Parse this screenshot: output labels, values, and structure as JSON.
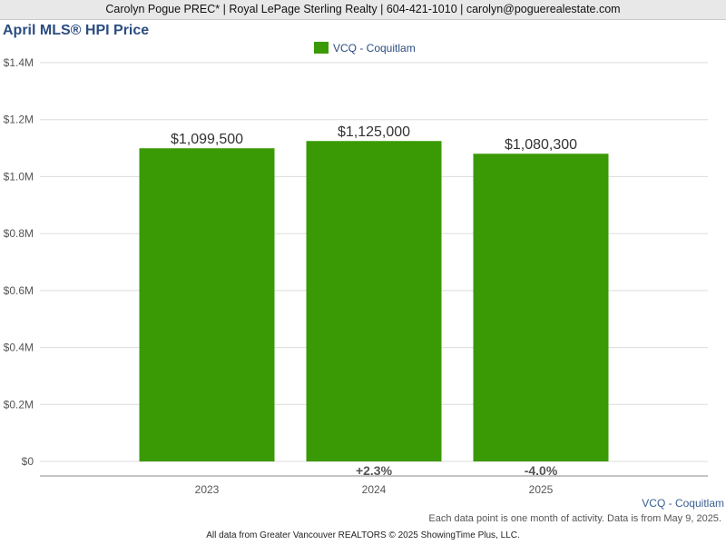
{
  "header": {
    "contact": "Carolyn Pogue PREC* | Royal LePage Sterling Realty | 604-421-1010 | carolyn@poguerealestate.com"
  },
  "chart_data": {
    "type": "bar",
    "title": "April MLS® HPI Price",
    "categories": [
      "2023",
      "2024",
      "2025"
    ],
    "series": [
      {
        "name": "VCQ - Coquitlam",
        "values": [
          1099500,
          1125000,
          1080300
        ],
        "value_labels": [
          "$1,099,500",
          "$1,125,000",
          "$1,080,300"
        ],
        "color": "#3a9a05"
      }
    ],
    "change_labels": [
      "",
      "+2.3%",
      "-4.0%"
    ],
    "ylim": [
      0,
      1400000
    ],
    "yticks": [
      0,
      200000,
      400000,
      600000,
      800000,
      1000000,
      1200000,
      1400000
    ],
    "ytick_labels": [
      "$0",
      "$0.2M",
      "$0.4M",
      "$0.6M",
      "$0.8M",
      "$1.0M",
      "$1.2M",
      "$1.4M"
    ],
    "grid": true,
    "legend_position": "top-center"
  },
  "footer": {
    "series_note": "VCQ - Coquitlam",
    "footnote": "Each data point is one month of activity. Data is from May 9, 2025.",
    "copyright": "All data from Greater Vancouver REALTORS © 2025 ShowingTime Plus, LLC."
  }
}
